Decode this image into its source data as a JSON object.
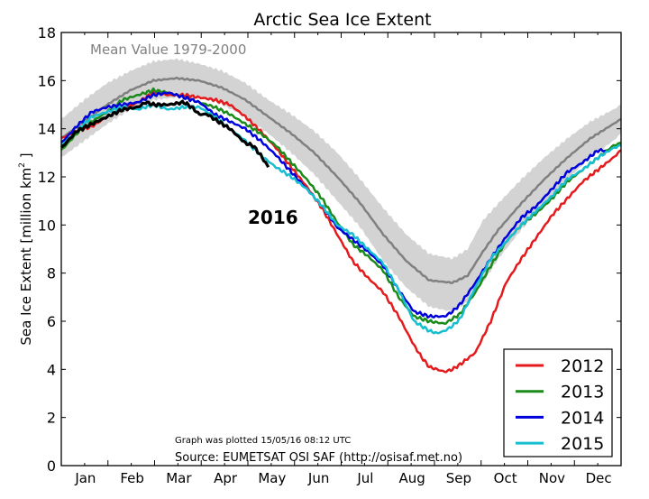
{
  "chart_data": {
    "type": "line",
    "title": "Arctic Sea Ice Extent",
    "xlabel": "",
    "ylabel": "Sea Ice Extent [million km² ]",
    "ylabel_main": "Sea Ice Extent [million km",
    "ylabel_sup": "2",
    "ylabel_end": " ]",
    "xlim": [
      0,
      365
    ],
    "ylim": [
      0,
      18
    ],
    "yticks": [
      0,
      2,
      4,
      6,
      8,
      10,
      12,
      14,
      16,
      18
    ],
    "ytick_labels": [
      "0",
      "2",
      "4",
      "6",
      "8",
      "10",
      "12",
      "14",
      "16",
      "18"
    ],
    "xtick_labels": [
      "Jan",
      "Feb",
      "Mar",
      "Apr",
      "May",
      "Jun",
      "Jul",
      "Aug",
      "Sep",
      "Oct",
      "Nov",
      "Dec"
    ],
    "grid": false,
    "legend_position": "bottom-right",
    "annotations": {
      "mean_label": "Mean Value 1979-2000",
      "year_label": "2016",
      "plotted": "Graph was plotted 15/05/16 08:12 UTC",
      "source": "Source: EUMETSAT OSI SAF (http://osisaf.met.no)"
    },
    "mean_band": {
      "name": "Mean Value 1979-2000",
      "color": "#808080",
      "band_color": "#d3d3d3",
      "x": [
        0,
        15,
        30,
        45,
        60,
        75,
        90,
        105,
        120,
        135,
        150,
        165,
        180,
        195,
        210,
        225,
        240,
        255,
        265,
        275,
        285,
        300,
        315,
        330,
        345,
        360,
        365
      ],
      "mean": [
        13.6,
        14.3,
        15.0,
        15.6,
        16.0,
        16.1,
        16.0,
        15.7,
        15.2,
        14.5,
        13.8,
        13.0,
        12.0,
        10.9,
        9.6,
        8.5,
        7.7,
        7.6,
        7.9,
        8.9,
        9.8,
        10.9,
        11.9,
        12.8,
        13.6,
        14.2,
        14.4
      ],
      "upper": [
        14.4,
        15.2,
        15.9,
        16.4,
        16.8,
        16.9,
        16.7,
        16.4,
        15.9,
        15.2,
        14.6,
        13.9,
        13.0,
        11.9,
        10.7,
        9.6,
        8.8,
        8.6,
        9.0,
        10.2,
        10.9,
        11.9,
        12.8,
        13.6,
        14.3,
        14.8,
        15.0
      ],
      "lower": [
        12.8,
        13.5,
        14.2,
        14.8,
        15.2,
        15.3,
        15.3,
        15.0,
        14.5,
        13.8,
        13.0,
        12.1,
        11.0,
        9.9,
        8.5,
        7.4,
        6.6,
        6.4,
        6.8,
        7.6,
        8.6,
        9.8,
        10.9,
        11.9,
        12.8,
        13.5,
        13.8
      ]
    },
    "series": [
      {
        "name": "2012",
        "color": "#e41a1c",
        "x": [
          0,
          10,
          20,
          30,
          40,
          50,
          60,
          70,
          80,
          90,
          100,
          110,
          120,
          130,
          140,
          150,
          160,
          170,
          180,
          190,
          200,
          210,
          220,
          230,
          235,
          240,
          245,
          250,
          255,
          260,
          270,
          280,
          290,
          300,
          310,
          320,
          330,
          340,
          350,
          360,
          365
        ],
        "values": [
          13.6,
          13.9,
          14.1,
          14.5,
          14.8,
          15.1,
          15.5,
          15.4,
          15.4,
          15.3,
          15.2,
          15.0,
          14.5,
          13.9,
          13.2,
          12.4,
          11.6,
          10.7,
          9.6,
          8.5,
          7.8,
          7.2,
          6.2,
          5.0,
          4.5,
          4.1,
          4.0,
          3.9,
          4.0,
          4.2,
          4.7,
          6.0,
          7.6,
          8.6,
          9.5,
          10.4,
          11.1,
          11.8,
          12.3,
          12.8,
          13.1
        ]
      },
      {
        "name": "2013",
        "color": "#1a8a1a",
        "x": [
          0,
          10,
          20,
          30,
          40,
          50,
          60,
          70,
          80,
          90,
          100,
          110,
          120,
          130,
          140,
          150,
          160,
          170,
          180,
          190,
          200,
          210,
          220,
          230,
          240,
          250,
          255,
          260,
          270,
          280,
          290,
          300,
          310,
          320,
          330,
          340,
          350,
          360,
          365
        ],
        "values": [
          13.1,
          13.8,
          14.3,
          14.7,
          15.2,
          15.4,
          15.6,
          15.5,
          15.3,
          15.1,
          14.9,
          14.6,
          14.2,
          13.8,
          13.3,
          12.6,
          11.9,
          11.1,
          10.1,
          9.2,
          8.7,
          8.1,
          7.0,
          6.2,
          6.0,
          5.9,
          6.1,
          6.3,
          7.2,
          8.3,
          9.3,
          10.0,
          10.5,
          11.1,
          11.8,
          12.3,
          12.8,
          13.3,
          13.4
        ]
      },
      {
        "name": "2014",
        "color": "#0000dd",
        "x": [
          0,
          10,
          20,
          30,
          40,
          50,
          60,
          70,
          80,
          90,
          100,
          110,
          120,
          130,
          140,
          150,
          160,
          170,
          180,
          190,
          200,
          210,
          220,
          230,
          240,
          250,
          255,
          260,
          270,
          280,
          290,
          300,
          310,
          320,
          330,
          340,
          350,
          355
        ],
        "values": [
          13.4,
          14.1,
          14.7,
          14.9,
          15.0,
          15.1,
          15.4,
          15.5,
          15.3,
          15.1,
          14.6,
          14.3,
          14.0,
          13.5,
          12.9,
          12.2,
          11.5,
          10.8,
          9.9,
          9.4,
          8.9,
          8.3,
          7.3,
          6.4,
          6.2,
          6.2,
          6.4,
          6.7,
          7.6,
          8.6,
          9.5,
          10.3,
          10.8,
          11.5,
          12.2,
          12.6,
          13.1,
          13.1
        ]
      },
      {
        "name": "2015",
        "color": "#17becf",
        "x": [
          0,
          10,
          20,
          30,
          40,
          50,
          60,
          70,
          80,
          90,
          100,
          110,
          120,
          130,
          140,
          150,
          160,
          170,
          180,
          190,
          200,
          210,
          220,
          230,
          240,
          245,
          250,
          255,
          260,
          270,
          280,
          290,
          300,
          310,
          320,
          330,
          340,
          350,
          360,
          365
        ],
        "values": [
          13.3,
          13.9,
          14.5,
          14.7,
          14.9,
          14.8,
          15.0,
          14.8,
          14.9,
          14.9,
          14.5,
          14.0,
          13.5,
          12.9,
          12.4,
          12.0,
          11.5,
          10.8,
          10.0,
          9.6,
          9.0,
          8.4,
          7.3,
          6.0,
          5.6,
          5.5,
          5.6,
          5.8,
          6.1,
          7.4,
          8.6,
          9.3,
          10.0,
          10.6,
          11.2,
          11.9,
          12.3,
          12.8,
          13.2,
          13.3
        ]
      },
      {
        "name": "2016",
        "color": "#000000",
        "x": [
          0,
          10,
          20,
          30,
          40,
          50,
          55,
          60,
          70,
          80,
          85,
          90,
          95,
          100,
          110,
          120,
          125,
          130,
          135
        ],
        "values": [
          13.2,
          13.9,
          14.2,
          14.5,
          14.8,
          14.9,
          15.1,
          15.0,
          15.0,
          15.1,
          14.9,
          14.6,
          14.6,
          14.4,
          14.0,
          13.4,
          13.3,
          12.9,
          12.4
        ]
      }
    ],
    "legend": [
      {
        "label": "2012",
        "color": "#e41a1c"
      },
      {
        "label": "2013",
        "color": "#1a8a1a"
      },
      {
        "label": "2014",
        "color": "#0000dd"
      },
      {
        "label": "2015",
        "color": "#17becf"
      }
    ]
  }
}
